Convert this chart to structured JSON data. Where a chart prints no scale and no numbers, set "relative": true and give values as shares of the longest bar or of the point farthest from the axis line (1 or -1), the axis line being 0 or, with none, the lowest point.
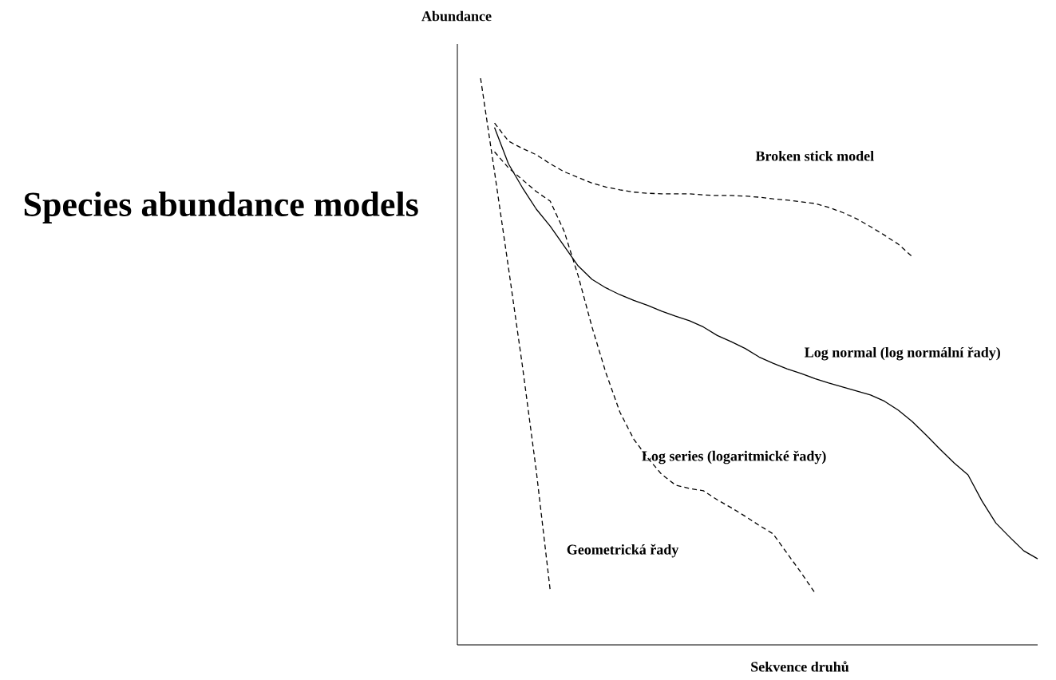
{
  "chart_data": {
    "type": "line",
    "title": "Species abundance models",
    "xlabel": "Sekvence druhů",
    "ylabel": "Abundance",
    "relative": true,
    "marker": "none",
    "categories": [
      null,
      null,
      null,
      null,
      null,
      null,
      null,
      null,
      null,
      null,
      null,
      null,
      null,
      null,
      null,
      null,
      null,
      null,
      null,
      null,
      null,
      null,
      null,
      null,
      null,
      null,
      null,
      null,
      null,
      null,
      null,
      null,
      null,
      null,
      null,
      null,
      null,
      null,
      null,
      null,
      null
    ],
    "series": [
      {
        "name": "Broken stick model",
        "color": "#000000",
        "line_style": "dashed",
        "values": [
          null,
          0.921,
          0.889,
          0.876,
          0.865,
          0.849,
          0.835,
          0.825,
          0.815,
          0.808,
          0.803,
          0.799,
          0.797,
          0.796,
          0.796,
          0.796,
          0.794,
          0.793,
          0.793,
          0.792,
          0.79,
          0.787,
          0.785,
          0.782,
          0.779,
          0.772,
          0.763,
          0.752,
          0.738,
          0.723,
          0.707,
          0.685,
          null,
          null,
          null,
          null,
          null,
          null,
          null,
          null,
          null
        ]
      },
      {
        "name": "Log normal (log normální řady)",
        "color": "#000000",
        "line_style": "solid",
        "values": [
          null,
          0.913,
          0.849,
          0.807,
          0.769,
          0.739,
          0.704,
          0.669,
          0.645,
          0.63,
          0.618,
          0.608,
          0.599,
          0.589,
          0.58,
          0.572,
          0.561,
          0.546,
          0.535,
          0.523,
          0.508,
          0.497,
          0.487,
          0.479,
          0.47,
          0.462,
          0.455,
          0.448,
          0.441,
          0.43,
          0.414,
          0.394,
          0.37,
          0.345,
          0.321,
          0.3,
          0.254,
          0.215,
          0.19,
          0.166,
          0.152
        ]
      },
      {
        "name": "Log series (logaritmické řady)",
        "color": "#000000",
        "line_style": "dashed",
        "values": [
          null,
          0.87,
          0.842,
          0.821,
          0.8,
          0.783,
          0.73,
          0.652,
          0.561,
          0.48,
          0.411,
          0.363,
          0.33,
          0.301,
          0.282,
          0.276,
          0.272,
          0.256,
          0.242,
          0.227,
          0.211,
          0.196,
          0.162,
          0.128,
          0.092,
          null,
          null,
          null,
          null,
          null,
          null,
          null,
          null,
          null,
          null,
          null,
          null,
          null,
          null,
          null,
          null
        ]
      },
      {
        "name": "Geometrická řady",
        "color": "#000000",
        "line_style": "dashed",
        "values": [
          1.0,
          0.835,
          0.666,
          0.493,
          0.307,
          0.096,
          null,
          null,
          null,
          null,
          null,
          null,
          null,
          null,
          null,
          null,
          null,
          null,
          null,
          null,
          null,
          null,
          null,
          null,
          null,
          null,
          null,
          null,
          null,
          null,
          null,
          null,
          null,
          null,
          null,
          null,
          null,
          null,
          null,
          null,
          null
        ]
      }
    ]
  }
}
